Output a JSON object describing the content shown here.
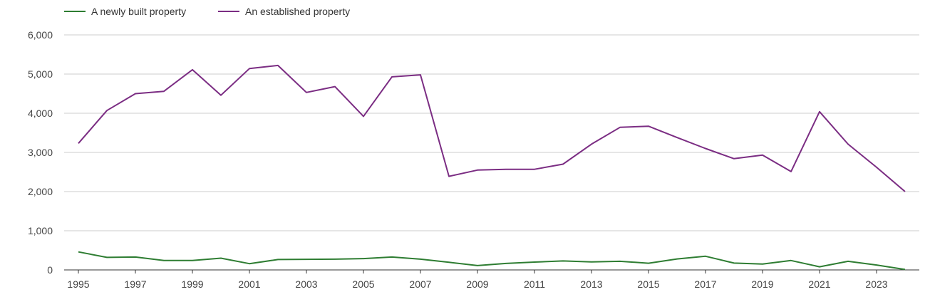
{
  "chart_data": {
    "type": "line",
    "x": [
      1995,
      1996,
      1997,
      1998,
      1999,
      2000,
      2001,
      2002,
      2003,
      2004,
      2005,
      2006,
      2007,
      2008,
      2009,
      2010,
      2011,
      2012,
      2013,
      2014,
      2015,
      2016,
      2017,
      2018,
      2019,
      2020,
      2021,
      2022,
      2023,
      2024
    ],
    "x_tick_labels": [
      "1995",
      "1997",
      "1999",
      "2001",
      "2003",
      "2005",
      "2007",
      "2009",
      "2011",
      "2013",
      "2015",
      "2017",
      "2019",
      "2021",
      "2023"
    ],
    "y_tick_labels": [
      "0",
      "1,000",
      "2,000",
      "3,000",
      "4,000",
      "5,000",
      "6,000"
    ],
    "ylim": [
      0,
      6000
    ],
    "grid": "horizontal",
    "legend_position": "top-left",
    "series": [
      {
        "name": "A newly built property",
        "color": "#2e7d32",
        "values": [
          460,
          320,
          330,
          240,
          240,
          300,
          160,
          265,
          270,
          275,
          290,
          330,
          275,
          195,
          110,
          165,
          200,
          230,
          205,
          220,
          170,
          280,
          350,
          175,
          150,
          240,
          80,
          220,
          125,
          10
        ]
      },
      {
        "name": "An established property",
        "color": "#7b2d83",
        "values": [
          3230,
          4070,
          4500,
          4560,
          5110,
          4460,
          5140,
          5220,
          4530,
          4680,
          3920,
          4930,
          4980,
          2390,
          2550,
          2570,
          2570,
          2700,
          3210,
          3640,
          3670,
          3380,
          3100,
          2840,
          2930,
          2510,
          4040,
          3210,
          2620,
          2000
        ]
      }
    ]
  }
}
